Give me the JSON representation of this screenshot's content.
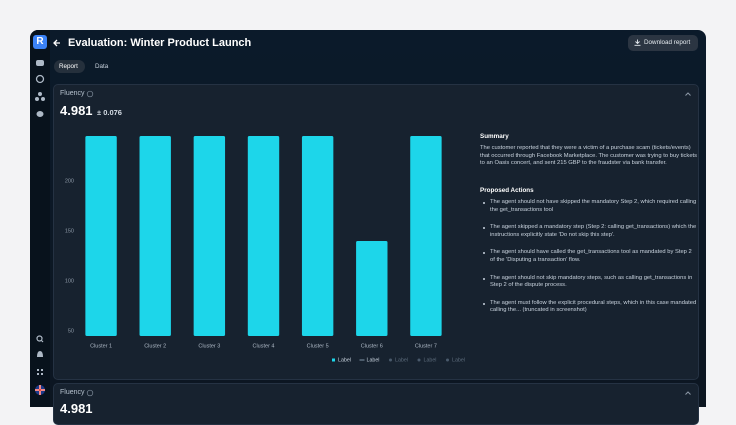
{
  "app": {
    "logo": "R"
  },
  "header": {
    "title": "Evaluation: Winter Product Launch",
    "download_button": "Download report"
  },
  "tabs": [
    "Report",
    "Data"
  ],
  "panels": [
    {
      "title": "Fluency",
      "score": "4.981",
      "error": "± 0.076",
      "summary": {
        "heading": "Summary",
        "text": "The customer reported that they were a victim of a purchase scam (tickets/events) that occurred through Facebook Marketplace. The customer was trying to buy tickets to an Oasis concert, and sent 215 GBP to the fraudster via bank transfer."
      },
      "actions": {
        "heading": "Proposed Actions",
        "items": [
          "The agent should not have skipped the mandatory Step 2, which required calling the get_transactions tool",
          "The agent skipped a mandatory step (Step 2: calling get_transactions) which the instructions explicitly state 'Do not skip this step'.",
          "The agent should have called the get_transactions tool as mandated by Step 2 of the 'Disputing a transaction' flow.",
          "The agent should not skip mandatory steps, such as calling get_transactions in Step 2 of the dispute process.",
          "The agent must follow the explicit procedural steps, which in this case mandated calling the... (truncated in screenshot)"
        ]
      }
    },
    {
      "title": "Fluency",
      "score": "4.981"
    }
  ],
  "chart_data": {
    "type": "bar",
    "categories": [
      "Cluster 1",
      "Cluster 2",
      "Cluster 3",
      "Cluster 4",
      "Cluster 5",
      "Cluster 6",
      "Cluster 7"
    ],
    "values": [
      245,
      245,
      245,
      245,
      245,
      140,
      245
    ],
    "color": "#1dd6ea",
    "ylim": [
      45,
      250
    ],
    "yticks": [
      50,
      100,
      150,
      200
    ],
    "grid": false,
    "legend": [
      {
        "label": "Label",
        "color": "#1dd6ea",
        "style": "square"
      },
      {
        "label": "Label",
        "color": "#9fb3c8",
        "style": "line"
      },
      {
        "label": "Label",
        "color": "#4a5a6c",
        "style": "dot"
      },
      {
        "label": "Label",
        "color": "#4a5a6c",
        "style": "dot"
      },
      {
        "label": "Label",
        "color": "#4a5a6c",
        "style": "dot"
      }
    ]
  }
}
